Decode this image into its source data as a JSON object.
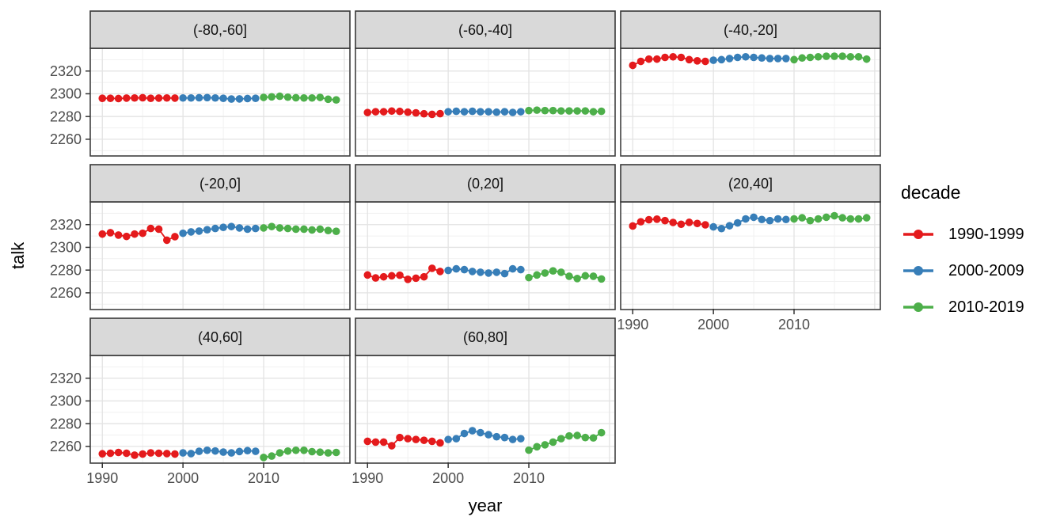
{
  "chart_data": {
    "type": "scatter",
    "title": "",
    "xlabel": "year",
    "ylabel": "talk",
    "x_ticks": [
      1990,
      2000,
      2010
    ],
    "y_ticks": [
      2260,
      2280,
      2300,
      2320
    ],
    "x_domain": [
      1988.6,
      2020.6
    ],
    "y_domain": [
      2246,
      2340
    ],
    "x_grid_major": [
      1990,
      2000,
      2010,
      2020
    ],
    "x_grid_minor": [
      1995,
      2005,
      2015
    ],
    "y_grid_minor": [
      2250,
      2270,
      2290,
      2310,
      2330
    ],
    "grid": true,
    "years": [
      1990,
      1991,
      1992,
      1993,
      1994,
      1995,
      1996,
      1997,
      1998,
      1999,
      2000,
      2001,
      2002,
      2003,
      2004,
      2005,
      2006,
      2007,
      2008,
      2009,
      2010,
      2011,
      2012,
      2013,
      2014,
      2015,
      2016,
      2017,
      2018,
      2019
    ],
    "legend": {
      "title": "decade",
      "position": "right",
      "entries": [
        {
          "label": "1990-1999",
          "color": "#E41A1C"
        },
        {
          "label": "2000-2009",
          "color": "#377EB8"
        },
        {
          "label": "2010-2019",
          "color": "#4DAF4A"
        }
      ]
    },
    "facets": [
      {
        "label": "(-80,-60]",
        "values": [
          2296.0,
          2296.0,
          2295.8,
          2296.2,
          2296.3,
          2296.5,
          2296.0,
          2296.2,
          2296.3,
          2296.2,
          2296.3,
          2296.3,
          2296.5,
          2296.6,
          2296.3,
          2296.0,
          2295.4,
          2295.5,
          2295.8,
          2296.0,
          2296.8,
          2297.3,
          2297.8,
          2297.0,
          2296.5,
          2296.3,
          2296.3,
          2296.8,
          2295.2,
          2294.6
        ]
      },
      {
        "label": "(-60,-40]",
        "values": [
          2283.5,
          2284.2,
          2284.2,
          2284.8,
          2284.5,
          2283.8,
          2283.2,
          2282.4,
          2281.9,
          2282.5,
          2284.2,
          2284.6,
          2284.2,
          2284.6,
          2284.2,
          2284.2,
          2283.8,
          2284.2,
          2283.6,
          2284.2,
          2285.2,
          2285.6,
          2285.2,
          2285.2,
          2284.9,
          2284.9,
          2284.9,
          2284.9,
          2284.2,
          2284.6
        ]
      },
      {
        "label": "(-40,-20]",
        "values": [
          2325.0,
          2328.5,
          2330.5,
          2330.5,
          2332.0,
          2332.5,
          2332.0,
          2330.0,
          2329.0,
          2328.5,
          2329.5,
          2330.0,
          2331.0,
          2332.0,
          2332.5,
          2332.0,
          2331.5,
          2331.0,
          2331.0,
          2331.0,
          2330.0,
          2331.5,
          2332.0,
          2332.5,
          2333.0,
          2333.0,
          2333.0,
          2332.5,
          2332.5,
          2330.5
        ]
      },
      {
        "label": "(-20,0]",
        "values": [
          2311.7,
          2312.9,
          2310.8,
          2309.6,
          2311.7,
          2312.4,
          2316.6,
          2316.0,
          2306.3,
          2309.4,
          2312.4,
          2313.6,
          2314.3,
          2315.5,
          2316.6,
          2317.6,
          2318.3,
          2317.1,
          2316.0,
          2316.6,
          2317.1,
          2318.3,
          2317.1,
          2316.6,
          2316.0,
          2316.0,
          2315.3,
          2316.0,
          2314.8,
          2314.1
        ]
      },
      {
        "label": "(0,20]",
        "values": [
          2275.7,
          2273.1,
          2274.1,
          2275.0,
          2275.5,
          2271.9,
          2272.9,
          2274.1,
          2281.6,
          2278.8,
          2279.7,
          2281.1,
          2280.4,
          2278.8,
          2278.1,
          2277.4,
          2278.1,
          2276.9,
          2281.1,
          2280.4,
          2273.4,
          2275.7,
          2277.4,
          2279.3,
          2278.1,
          2274.6,
          2272.6,
          2275.0,
          2274.6,
          2272.2
        ]
      },
      {
        "label": "(20,40]",
        "values": [
          2318.8,
          2322.5,
          2324.3,
          2324.8,
          2323.5,
          2321.9,
          2320.3,
          2322.0,
          2321.0,
          2319.8,
          2318.0,
          2316.5,
          2319.0,
          2321.5,
          2325.0,
          2326.5,
          2324.5,
          2323.5,
          2325.0,
          2324.5,
          2325.0,
          2326.0,
          2323.5,
          2325.0,
          2326.5,
          2327.8,
          2326.0,
          2325.0,
          2325.0,
          2326.0
        ]
      },
      {
        "label": "(40,60]",
        "values": [
          2253.5,
          2254.0,
          2254.7,
          2254.0,
          2252.3,
          2253.3,
          2254.3,
          2254.0,
          2253.7,
          2253.3,
          2254.3,
          2253.7,
          2255.7,
          2256.6,
          2256.0,
          2255.0,
          2254.3,
          2255.5,
          2256.3,
          2255.7,
          2250.3,
          2251.5,
          2254.3,
          2255.9,
          2256.6,
          2256.6,
          2255.4,
          2254.9,
          2254.3,
          2254.7
        ]
      },
      {
        "label": "(60,80]",
        "values": [
          2264.5,
          2263.8,
          2263.8,
          2260.6,
          2267.8,
          2266.8,
          2266.1,
          2265.4,
          2264.5,
          2263.1,
          2266.1,
          2266.8,
          2271.4,
          2273.8,
          2272.1,
          2270.3,
          2268.5,
          2267.8,
          2266.1,
          2266.8,
          2256.7,
          2259.7,
          2261.4,
          2263.8,
          2266.8,
          2269.2,
          2269.6,
          2267.8,
          2267.5,
          2272.1
        ]
      }
    ]
  },
  "colors": {
    "strip_bg": "#d9d9d9",
    "strip_border": "#383838",
    "panel_border": "#404040",
    "panel_bg": "#ffffff",
    "grid_major": "#e3e3e3",
    "grid_minor": "#f1f1f1",
    "tick": "#333333",
    "tick_label": "#4d4d4d",
    "text": "#000000"
  }
}
